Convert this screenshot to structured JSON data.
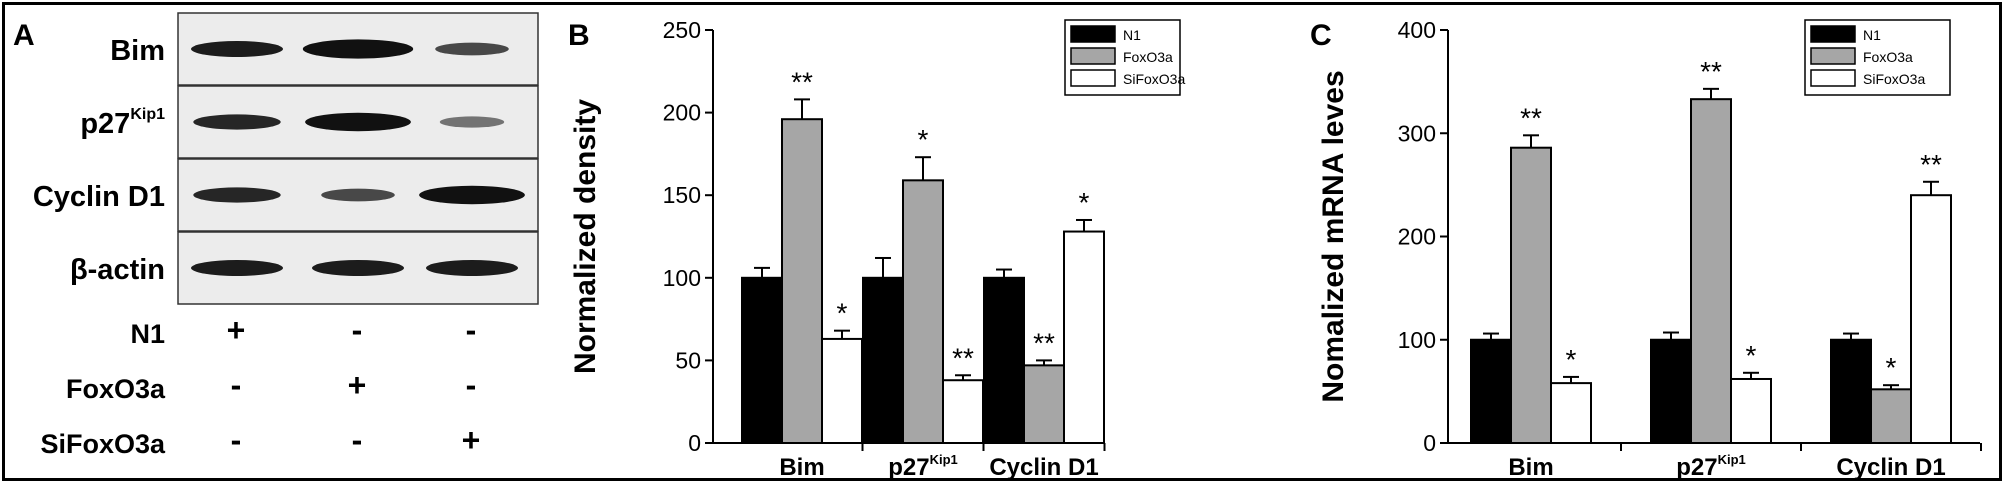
{
  "panels": {
    "a": {
      "letter": "A"
    },
    "b": {
      "letter": "B"
    },
    "c": {
      "letter": "C"
    }
  },
  "blot": {
    "rows": [
      {
        "label": "Bim",
        "sup": ""
      },
      {
        "label": "p27",
        "sup": "Kip1"
      },
      {
        "label": "Cyclin D1",
        "sup": ""
      },
      {
        "label": "β-actin",
        "sup": ""
      }
    ],
    "conditions": [
      {
        "label": "N1",
        "signs": [
          "+",
          "-",
          "-"
        ]
      },
      {
        "label": "FoxO3a",
        "signs": [
          "-",
          "+",
          "-"
        ]
      },
      {
        "label": "SiFoxO3a",
        "signs": [
          "-",
          "-",
          "+"
        ]
      }
    ]
  },
  "chart_data": [
    {
      "type": "bar",
      "categories": [
        "Bim",
        "p27",
        "Cyclin D1"
      ],
      "category_sup": [
        "",
        "Kip1",
        ""
      ],
      "ylabel": "Normalized density",
      "ylim": [
        0,
        250
      ],
      "yticks": [
        0,
        50,
        100,
        150,
        200,
        250
      ],
      "legend_position": "top-right",
      "series": [
        {
          "name": "N1",
          "color": "#000000",
          "values": [
            100,
            100,
            100
          ],
          "errors": [
            6,
            12,
            5
          ],
          "sig": [
            "",
            "",
            ""
          ]
        },
        {
          "name": "FoxO3a",
          "color": "#a6a6a6",
          "values": [
            196,
            159,
            47
          ],
          "errors": [
            12,
            14,
            3
          ],
          "sig": [
            "**",
            "*",
            "**"
          ]
        },
        {
          "name": "SiFoxO3a",
          "color": "#ffffff",
          "values": [
            63,
            38,
            128
          ],
          "errors": [
            5,
            3,
            7
          ],
          "sig": [
            "*",
            "**",
            "*"
          ]
        }
      ]
    },
    {
      "type": "bar",
      "categories": [
        "Bim",
        "p27",
        "Cyclin D1"
      ],
      "category_sup": [
        "",
        "Kip1",
        ""
      ],
      "ylabel": "Nomalized mRNA leves",
      "ylim": [
        0,
        400
      ],
      "yticks": [
        0,
        100,
        200,
        300,
        400
      ],
      "legend_position": "top-right",
      "series": [
        {
          "name": "N1",
          "color": "#000000",
          "values": [
            100,
            100,
            100
          ],
          "errors": [
            6,
            7,
            6
          ],
          "sig": [
            "",
            "",
            ""
          ]
        },
        {
          "name": "FoxO3a",
          "color": "#a6a6a6",
          "values": [
            286,
            333,
            52
          ],
          "errors": [
            12,
            10,
            4
          ],
          "sig": [
            "**",
            "**",
            "*"
          ]
        },
        {
          "name": "SiFoxO3a",
          "color": "#ffffff",
          "values": [
            58,
            62,
            240
          ],
          "errors": [
            6,
            6,
            13
          ],
          "sig": [
            "*",
            "*",
            "**"
          ]
        }
      ]
    }
  ]
}
